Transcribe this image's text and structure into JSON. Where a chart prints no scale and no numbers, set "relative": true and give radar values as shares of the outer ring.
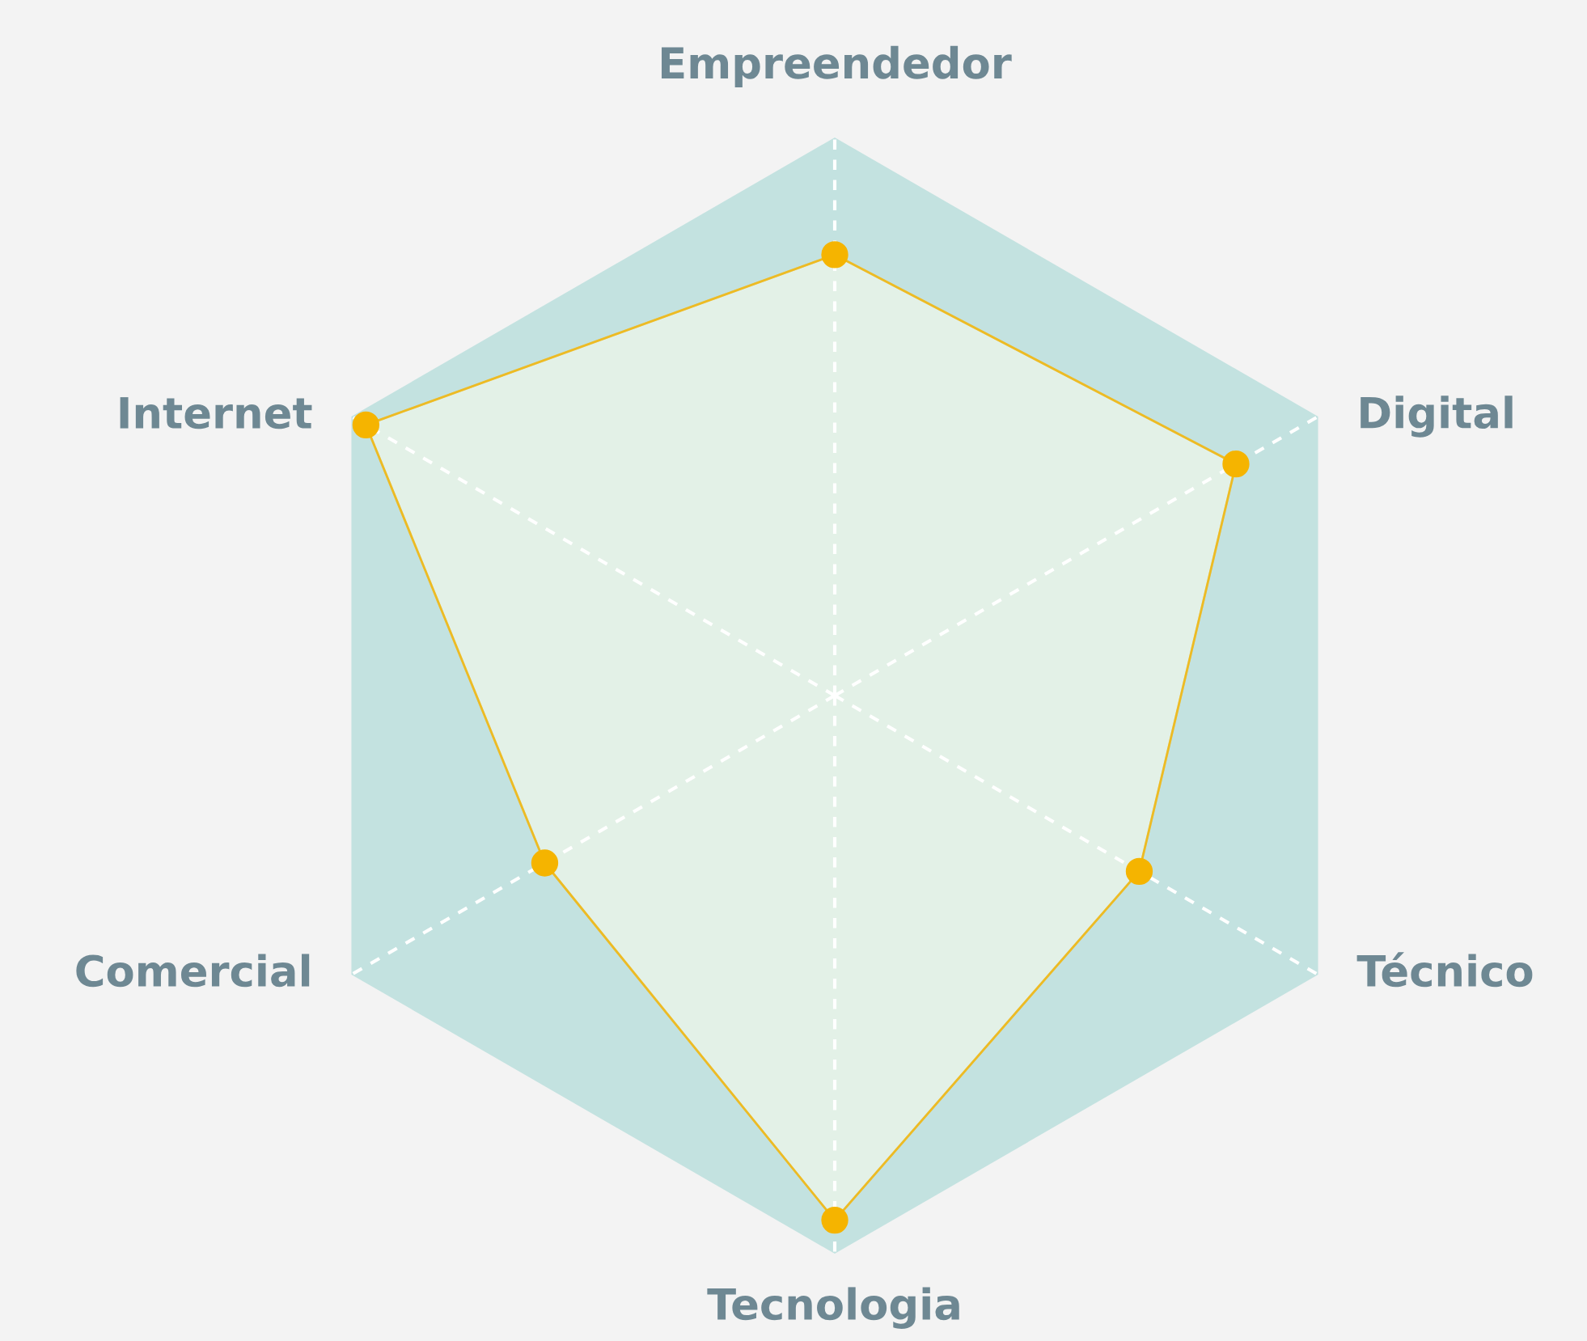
{
  "chart_data": {
    "type": "radar",
    "relative": true,
    "categories": [
      "Empreendedor",
      "Digital",
      "Técnico",
      "Tecnologia",
      "Comercial",
      "Internet"
    ],
    "series": [
      {
        "color": "#f5b400",
        "values": [
          0.79,
          0.83,
          0.63,
          0.94,
          0.6,
          0.97
        ]
      }
    ],
    "grid": true,
    "marker": "circle"
  }
}
